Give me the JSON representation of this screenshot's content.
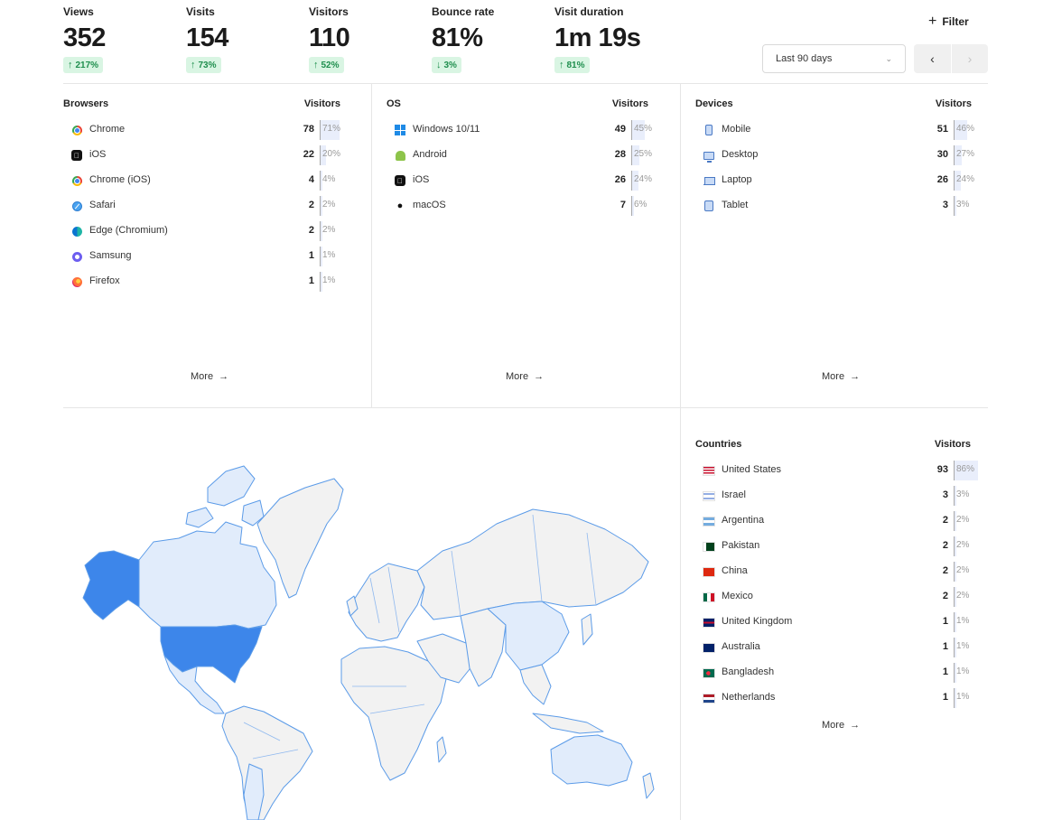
{
  "metrics": [
    {
      "label": "Views",
      "value": "352",
      "change": "217%",
      "direction": "up"
    },
    {
      "label": "Visits",
      "value": "154",
      "change": "73%",
      "direction": "up"
    },
    {
      "label": "Visitors",
      "value": "110",
      "change": "52%",
      "direction": "up"
    },
    {
      "label": "Bounce rate",
      "value": "81%",
      "change": "3%",
      "direction": "down"
    },
    {
      "label": "Visit duration",
      "value": "1m 19s",
      "change": "81%",
      "direction": "up"
    }
  ],
  "filter_label": "Filter",
  "date_range": {
    "selected": "Last 90 days"
  },
  "colors": {
    "accent": "#3d86ea",
    "accent_light": "#e1ecfb",
    "change_bg": "#d9f5e3",
    "change_text": "#1f8f4e",
    "bar": "#e9eefb"
  },
  "browsers": {
    "title": "Browsers",
    "metric": "Visitors",
    "more": "More",
    "items": [
      {
        "name": "Chrome",
        "icon": "chrome-icon",
        "value": "78",
        "pct": "71%",
        "fraction": 0.71
      },
      {
        "name": "iOS",
        "icon": "ios-icon",
        "value": "22",
        "pct": "20%",
        "fraction": 0.2
      },
      {
        "name": "Chrome (iOS)",
        "icon": "chrome-icon",
        "value": "4",
        "pct": "4%",
        "fraction": 0.04
      },
      {
        "name": "Safari",
        "icon": "safari-icon",
        "value": "2",
        "pct": "2%",
        "fraction": 0.02
      },
      {
        "name": "Edge (Chromium)",
        "icon": "edge-icon",
        "value": "2",
        "pct": "2%",
        "fraction": 0.02
      },
      {
        "name": "Samsung",
        "icon": "samsung-icon",
        "value": "1",
        "pct": "1%",
        "fraction": 0.01
      },
      {
        "name": "Firefox",
        "icon": "firefox-icon",
        "value": "1",
        "pct": "1%",
        "fraction": 0.01
      }
    ]
  },
  "os": {
    "title": "OS",
    "metric": "Visitors",
    "more": "More",
    "items": [
      {
        "name": "Windows 10/11",
        "icon": "windows-icon",
        "value": "49",
        "pct": "45%",
        "fraction": 0.45
      },
      {
        "name": "Android",
        "icon": "android-icon",
        "value": "28",
        "pct": "25%",
        "fraction": 0.25
      },
      {
        "name": "iOS",
        "icon": "ios-icon",
        "value": "26",
        "pct": "24%",
        "fraction": 0.24
      },
      {
        "name": "macOS",
        "icon": "apple-icon",
        "value": "7",
        "pct": "6%",
        "fraction": 0.06
      }
    ]
  },
  "devices": {
    "title": "Devices",
    "metric": "Visitors",
    "more": "More",
    "items": [
      {
        "name": "Mobile",
        "icon": "mobile-icon",
        "value": "51",
        "pct": "46%",
        "fraction": 0.46
      },
      {
        "name": "Desktop",
        "icon": "desktop-icon",
        "value": "30",
        "pct": "27%",
        "fraction": 0.27
      },
      {
        "name": "Laptop",
        "icon": "laptop-icon",
        "value": "26",
        "pct": "24%",
        "fraction": 0.24
      },
      {
        "name": "Tablet",
        "icon": "tablet-icon",
        "value": "3",
        "pct": "3%",
        "fraction": 0.03
      }
    ]
  },
  "countries": {
    "title": "Countries",
    "metric": "Visitors",
    "more": "More",
    "items": [
      {
        "name": "United States",
        "icon": "us-flag-icon",
        "value": "93",
        "pct": "86%",
        "fraction": 0.86
      },
      {
        "name": "Israel",
        "icon": "israel-flag-icon",
        "value": "3",
        "pct": "3%",
        "fraction": 0.03
      },
      {
        "name": "Argentina",
        "icon": "argentina-flag-icon",
        "value": "2",
        "pct": "2%",
        "fraction": 0.02
      },
      {
        "name": "Pakistan",
        "icon": "pakistan-flag-icon",
        "value": "2",
        "pct": "2%",
        "fraction": 0.02
      },
      {
        "name": "China",
        "icon": "china-flag-icon",
        "value": "2",
        "pct": "2%",
        "fraction": 0.02
      },
      {
        "name": "Mexico",
        "icon": "mexico-flag-icon",
        "value": "2",
        "pct": "2%",
        "fraction": 0.02
      },
      {
        "name": "United Kingdom",
        "icon": "uk-flag-icon",
        "value": "1",
        "pct": "1%",
        "fraction": 0.01
      },
      {
        "name": "Australia",
        "icon": "australia-flag-icon",
        "value": "1",
        "pct": "1%",
        "fraction": 0.01
      },
      {
        "name": "Bangladesh",
        "icon": "bangladesh-flag-icon",
        "value": "1",
        "pct": "1%",
        "fraction": 0.01
      },
      {
        "name": "Netherlands",
        "icon": "netherlands-flag-icon",
        "value": "1",
        "pct": "1%",
        "fraction": 0.01
      }
    ]
  },
  "map": {
    "highlighted_strong": [
      "United States"
    ],
    "highlighted_light": [
      "Canada",
      "Alaska region",
      "China",
      "Australia",
      "Mexico",
      "Argentina"
    ]
  }
}
